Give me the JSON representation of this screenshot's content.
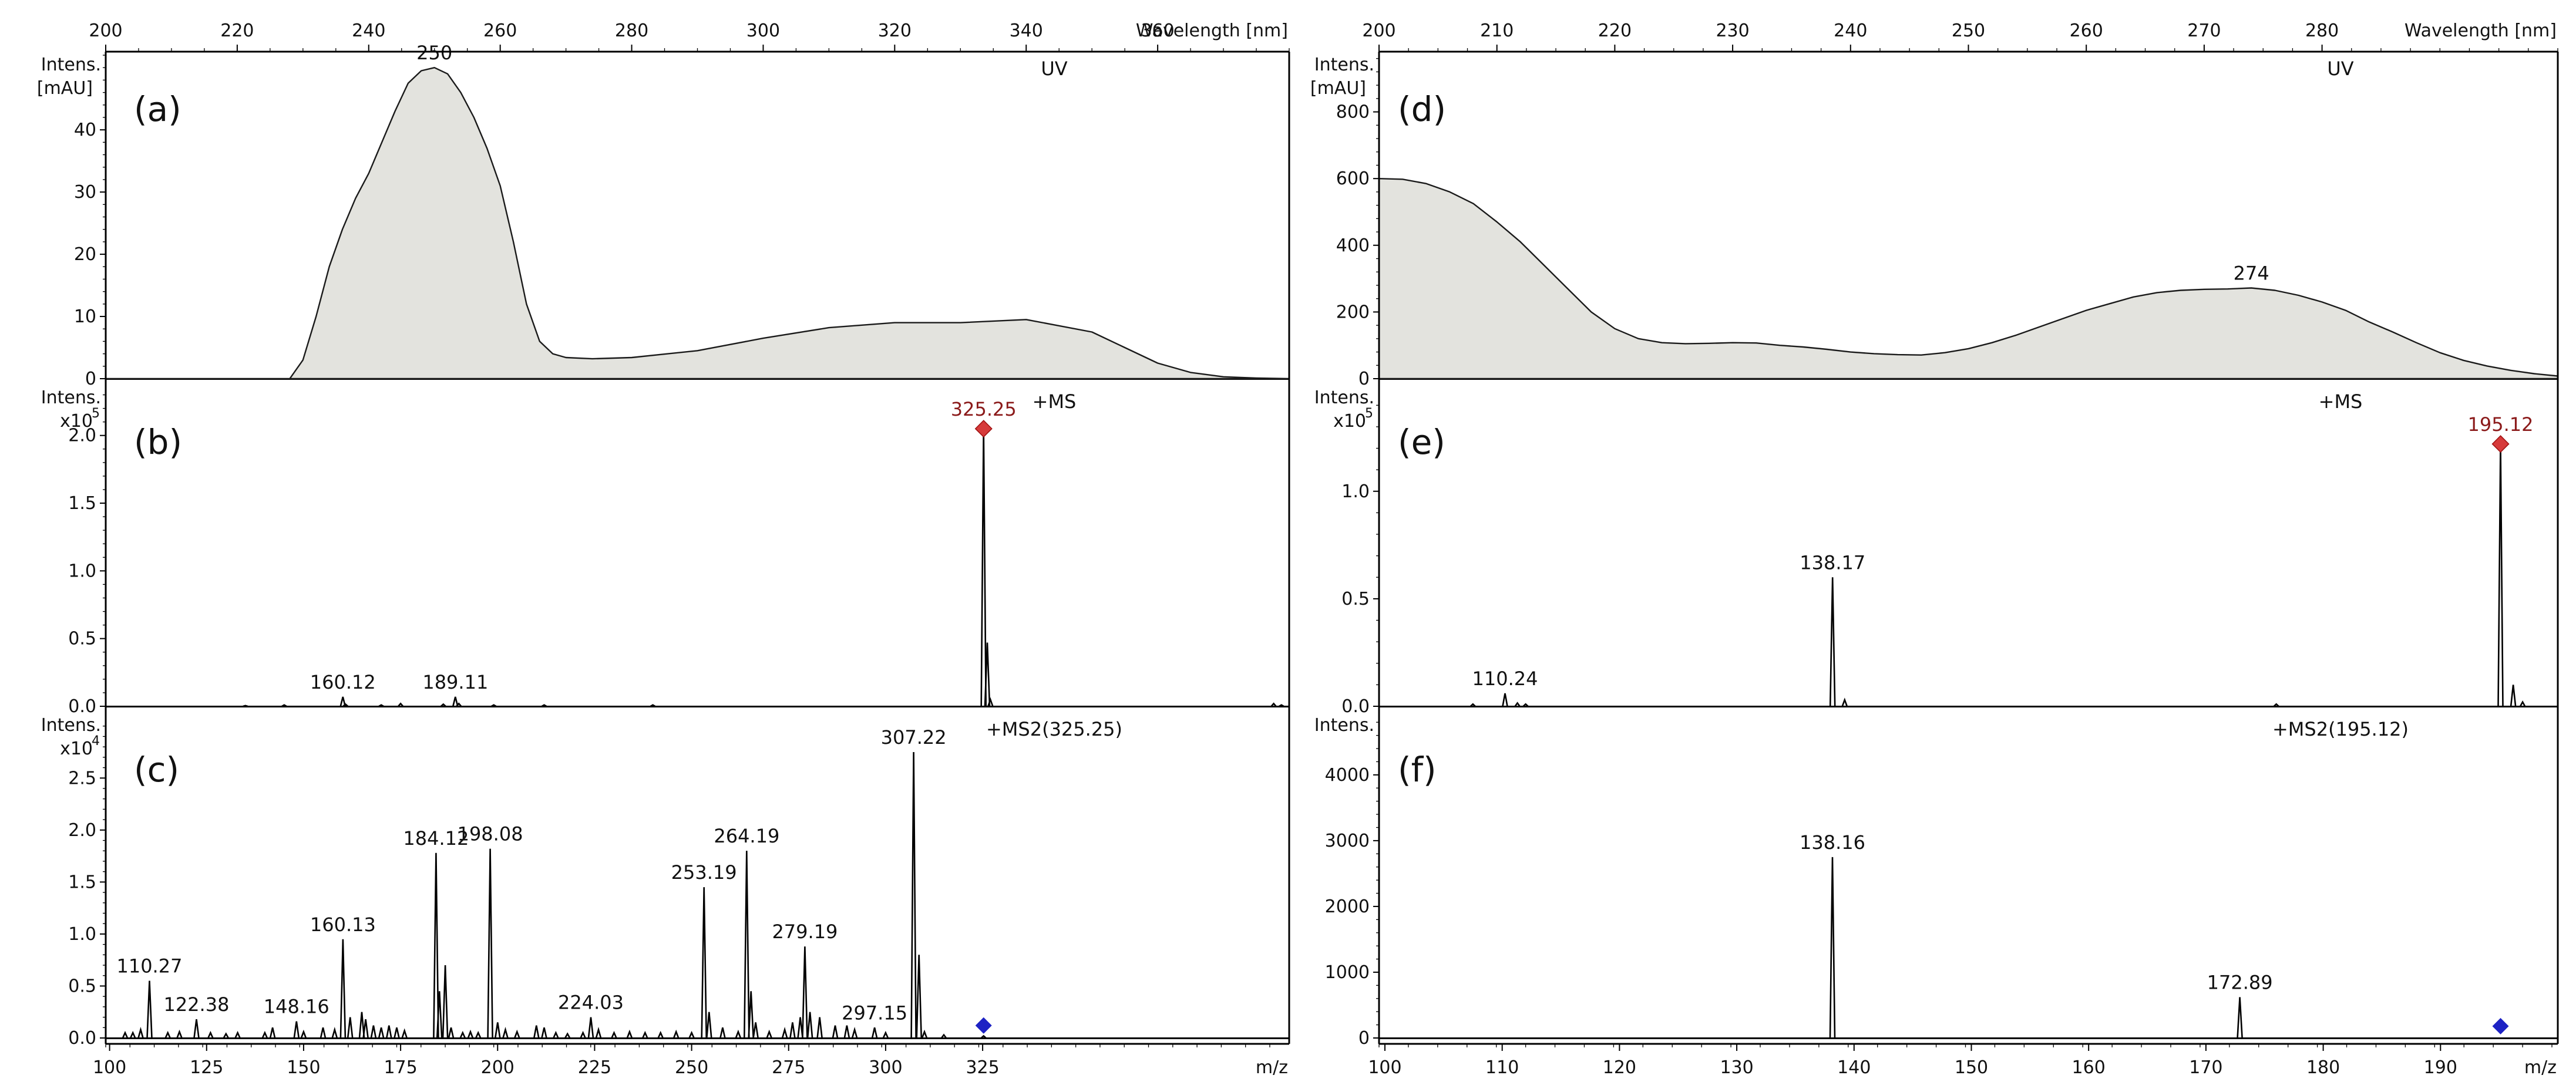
{
  "chart_data": [
    {
      "id": "a",
      "type": "area",
      "panel_label": "(a)",
      "title": "UV",
      "ylabel": [
        "Intens.",
        "[mAU]"
      ],
      "xlabel": "Wavelength [nm]",
      "xlim": [
        200,
        380
      ],
      "ylim": [
        0,
        52
      ],
      "xticks": [
        200,
        220,
        240,
        260,
        280,
        300,
        320,
        340,
        360
      ],
      "yticks": [
        0,
        10,
        20,
        30,
        40
      ],
      "x": [
        200,
        228,
        230,
        232,
        234,
        236,
        238,
        240,
        242,
        244,
        246,
        248,
        250,
        252,
        254,
        256,
        258,
        260,
        262,
        264,
        266,
        268,
        270,
        274,
        280,
        290,
        300,
        310,
        320,
        330,
        340,
        350,
        355,
        360,
        365,
        370,
        375,
        380
      ],
      "y": [
        0,
        0,
        3,
        10,
        18,
        24,
        29,
        33,
        38,
        43,
        47.5,
        49.5,
        50,
        49,
        46,
        42,
        37,
        31,
        22,
        12,
        6,
        4,
        3.4,
        3.2,
        3.4,
        4.5,
        6.5,
        8.2,
        9,
        9,
        9.5,
        7.5,
        5,
        2.5,
        1,
        0.3,
        0.1,
        0
      ],
      "peaks": [
        {
          "x": 250,
          "y": 50,
          "label": "250"
        }
      ]
    },
    {
      "id": "b",
      "type": "bar",
      "panel_label": "(b)",
      "title": "+MS",
      "ylabel": [
        "Intens.",
        "x10"
      ],
      "yexp": "5",
      "xlim": [
        99,
        404
      ],
      "ylim": [
        0,
        2.35
      ],
      "yticks": [
        0.0,
        0.5,
        1.0,
        1.5,
        2.0
      ],
      "x": [
        135,
        145,
        160.12,
        160.8,
        170,
        175,
        186,
        189.11,
        190,
        199,
        212,
        240,
        325.25,
        326.2,
        327,
        400,
        402
      ],
      "y": [
        0.005,
        0.01,
        0.07,
        0.015,
        0.01,
        0.02,
        0.015,
        0.07,
        0.02,
        0.01,
        0.01,
        0.01,
        2.05,
        0.47,
        0.05,
        0.02,
        0.01
      ],
      "peaks": [
        {
          "x": 160.12,
          "y": 0.07,
          "label": "160.12"
        },
        {
          "x": 189.11,
          "y": 0.07,
          "label": "189.11"
        },
        {
          "x": 325.25,
          "y": 2.05,
          "label": "325.25",
          "precursor": true
        }
      ]
    },
    {
      "id": "c",
      "type": "bar",
      "panel_label": "(c)",
      "title": "+MS2(325.25)",
      "ylabel": [
        "Intens.",
        "x10"
      ],
      "yexp": "4",
      "xlabel": "m/z",
      "xlim": [
        99,
        404
      ],
      "ylim": [
        0,
        3.1
      ],
      "xticks": [
        100,
        125,
        150,
        175,
        200,
        225,
        250,
        275,
        300,
        325
      ],
      "xtick_labels": [
        "100",
        "125",
        "150",
        "175",
        "200",
        "225",
        "250",
        "275",
        "300",
        "325"
      ],
      "yticks": [
        0.0,
        0.5,
        1.0,
        1.5,
        2.0,
        2.5
      ],
      "x": [
        104,
        106,
        108,
        110.27,
        115,
        118,
        122.38,
        126,
        130,
        133,
        140,
        142,
        148.16,
        150,
        155,
        158,
        160.13,
        162,
        165,
        166,
        168,
        170,
        172,
        174,
        176,
        184.12,
        185,
        186.5,
        188,
        191,
        193,
        195,
        198.08,
        200,
        202,
        205,
        210,
        212,
        215,
        218,
        222,
        224.03,
        226,
        230,
        234,
        238,
        242,
        246,
        250,
        253.19,
        254.5,
        258,
        262,
        264.19,
        265.3,
        266.5,
        270,
        274,
        276,
        278,
        279.19,
        280.5,
        283,
        287,
        290,
        292,
        297.15,
        300,
        307.22,
        308.6,
        310,
        315,
        325.25
      ],
      "y": [
        0.05,
        0.05,
        0.08,
        0.55,
        0.05,
        0.06,
        0.18,
        0.05,
        0.04,
        0.05,
        0.05,
        0.1,
        0.16,
        0.06,
        0.1,
        0.08,
        0.95,
        0.2,
        0.25,
        0.18,
        0.12,
        0.1,
        0.12,
        0.1,
        0.07,
        1.78,
        0.45,
        0.7,
        0.1,
        0.05,
        0.06,
        0.05,
        1.82,
        0.15,
        0.08,
        0.06,
        0.12,
        0.1,
        0.05,
        0.04,
        0.05,
        0.2,
        0.08,
        0.05,
        0.06,
        0.05,
        0.05,
        0.06,
        0.05,
        1.45,
        0.25,
        0.1,
        0.06,
        1.8,
        0.45,
        0.15,
        0.06,
        0.08,
        0.15,
        0.2,
        0.88,
        0.25,
        0.2,
        0.12,
        0.12,
        0.08,
        0.1,
        0.05,
        2.75,
        0.8,
        0.06,
        0.03,
        0.02
      ],
      "peaks": [
        {
          "x": 110.27,
          "y": 0.55,
          "label": "110.27"
        },
        {
          "x": 122.38,
          "y": 0.18,
          "label": "122.38"
        },
        {
          "x": 148.16,
          "y": 0.16,
          "label": "148.16"
        },
        {
          "x": 160.13,
          "y": 0.95,
          "label": "160.13"
        },
        {
          "x": 184.12,
          "y": 1.78,
          "label": "184.12"
        },
        {
          "x": 198.08,
          "y": 1.82,
          "label": "198.08"
        },
        {
          "x": 224.03,
          "y": 0.2,
          "label": "224.03"
        },
        {
          "x": 253.19,
          "y": 1.45,
          "label": "253.19"
        },
        {
          "x": 264.19,
          "y": 1.8,
          "label": "264.19"
        },
        {
          "x": 279.19,
          "y": 0.88,
          "label": "279.19"
        },
        {
          "x": 297.15,
          "y": 0.1,
          "label": "297.15"
        },
        {
          "x": 307.22,
          "y": 2.75,
          "label": "307.22"
        }
      ],
      "precursor_marker": {
        "x": 325.25,
        "y": 0.12
      }
    },
    {
      "id": "d",
      "type": "area",
      "panel_label": "(d)",
      "title": "UV",
      "ylabel": [
        "Intens.",
        "[mAU]"
      ],
      "xlabel": "Wavelength [nm]",
      "xlim": [
        200,
        300
      ],
      "ylim": [
        0,
        970
      ],
      "xticks": [
        200,
        210,
        220,
        230,
        240,
        250,
        260,
        270,
        280
      ],
      "yticks": [
        0,
        200,
        400,
        600,
        800
      ],
      "x": [
        200,
        202,
        204,
        206,
        208,
        210,
        212,
        214,
        216,
        218,
        220,
        222,
        224,
        226,
        228,
        230,
        232,
        234,
        236,
        238,
        240,
        242,
        244,
        246,
        248,
        250,
        252,
        254,
        256,
        258,
        260,
        262,
        264,
        266,
        268,
        270,
        272,
        274,
        276,
        278,
        280,
        282,
        284,
        286,
        288,
        290,
        292,
        294,
        296,
        298,
        300
      ],
      "y": [
        600,
        598,
        585,
        560,
        525,
        470,
        410,
        340,
        270,
        200,
        150,
        120,
        108,
        105,
        106,
        108,
        107,
        100,
        95,
        88,
        80,
        75,
        72,
        71,
        78,
        90,
        108,
        130,
        155,
        180,
        205,
        225,
        245,
        258,
        265,
        268,
        269,
        272,
        265,
        250,
        230,
        205,
        170,
        140,
        108,
        78,
        55,
        38,
        25,
        15,
        8
      ],
      "peaks": [
        {
          "x": 274,
          "y": 272,
          "label": "274"
        }
      ]
    },
    {
      "id": "e",
      "type": "bar",
      "panel_label": "(e)",
      "title": "+MS",
      "ylabel": [
        "Intens.",
        "x10"
      ],
      "yexp": "5",
      "xlim": [
        99.5,
        200
      ],
      "ylim": [
        0,
        1.48
      ],
      "yticks": [
        0.0,
        0.5,
        1.0
      ],
      "x": [
        107.5,
        110.24,
        111.3,
        112,
        138.17,
        139.2,
        176,
        195.12,
        196.2,
        197
      ],
      "y": [
        0.01,
        0.06,
        0.015,
        0.01,
        0.6,
        0.03,
        0.01,
        1.22,
        0.1,
        0.02
      ],
      "peaks": [
        {
          "x": 110.24,
          "y": 0.06,
          "label": "110.24"
        },
        {
          "x": 138.17,
          "y": 0.6,
          "label": "138.17"
        },
        {
          "x": 195.12,
          "y": 1.22,
          "label": "195.12",
          "precursor": true
        }
      ]
    },
    {
      "id": "f",
      "type": "bar",
      "panel_label": "(f)",
      "title": "+MS2(195.12)",
      "ylabel": [
        "Intens."
      ],
      "xlabel": "m/z",
      "xlim": [
        99.5,
        200
      ],
      "ylim": [
        0,
        4900
      ],
      "xticks": [
        100,
        110,
        120,
        130,
        140,
        150,
        160,
        170,
        180,
        190
      ],
      "xtick_labels": [
        "100",
        "110",
        "120",
        "130",
        "140",
        "150",
        "160",
        "170",
        "180",
        "190"
      ],
      "yticks": [
        0,
        1000,
        2000,
        3000,
        4000
      ],
      "x": [
        138.16,
        172.89
      ],
      "y": [
        2750,
        620
      ],
      "peaks": [
        {
          "x": 138.16,
          "y": 2750,
          "label": "138.16"
        },
        {
          "x": 172.89,
          "y": 620,
          "label": "172.89"
        }
      ],
      "precursor_marker": {
        "x": 195.12,
        "y": 180
      }
    }
  ],
  "colors": {
    "uv_fill": "#e3e3de",
    "precursor_red": "#d63a3a",
    "precursor_label": "#8b1a1a",
    "marker_blue": "#1d22c4",
    "axis": "#000000"
  }
}
